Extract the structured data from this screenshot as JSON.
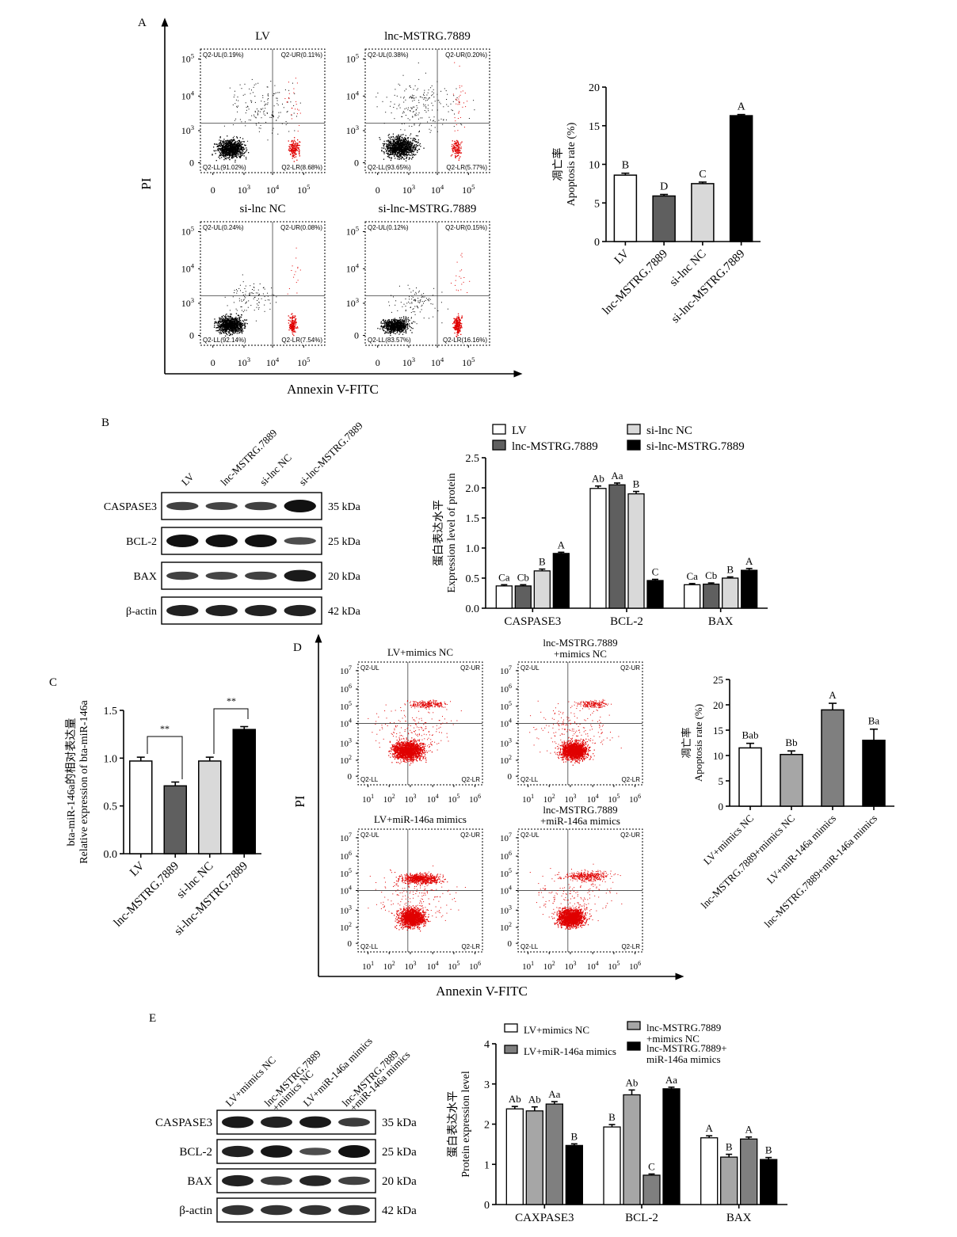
{
  "panel_a": {
    "label": "A",
    "flow": {
      "y_title": "PI",
      "x_title": "Annexin V-FITC",
      "y_ticks": [
        "10^5",
        "10^4",
        "10^3",
        "0"
      ],
      "x_ticks": [
        "0",
        "10^3",
        "10^4",
        "10^5"
      ],
      "plots": [
        {
          "title": "LV",
          "ul": "Q2-UL(0.19%)",
          "ur": "Q2-UR(0.11%)",
          "ll": "Q2-LL(91.02%)",
          "lr": "Q2-LR(8.68%)"
        },
        {
          "title": "lnc-MSTRG.7889",
          "ul": "Q2-UL(0.38%)",
          "ur": "Q2-UR(0.20%)",
          "ll": "Q2-LL(93.65%)",
          "lr": "Q2-LR(5.77%)"
        },
        {
          "title": "si-lnc NC",
          "ul": "Q2-UL(0.24%)",
          "ur": "Q2-UR(0.08%)",
          "ll": "Q2-LL(92.14%)",
          "lr": "Q2-LR(7.54%)"
        },
        {
          "title": "si-lnc-MSTRG.7889",
          "ul": "Q2-UL(0.12%)",
          "ur": "Q2-UR(0.15%)",
          "ll": "Q2-LL(83.57%)",
          "lr": "Q2-LR(16.16%)"
        }
      ]
    }
  },
  "panel_b": {
    "label": "B",
    "blot": {
      "lanes": [
        "LV",
        "lnc-MSTRG.7889",
        "si-lnc NC",
        "si-lnc-MSTRG.7889"
      ],
      "rows": [
        {
          "name": "CASPASE3",
          "kda": "35 kDa",
          "intensity": [
            0.55,
            0.5,
            0.55,
            1.0
          ]
        },
        {
          "name": "BCL-2",
          "kda": "25 kDa",
          "intensity": [
            1.0,
            1.0,
            1.0,
            0.45
          ]
        },
        {
          "name": "BAX",
          "kda": "20 kDa",
          "intensity": [
            0.55,
            0.5,
            0.55,
            0.9
          ]
        },
        {
          "name": "β-actin",
          "kda": "42 kDa",
          "intensity": [
            0.85,
            0.85,
            0.85,
            0.85
          ]
        }
      ]
    }
  },
  "panel_c": {
    "label": "C",
    "sig_1": "**",
    "sig_2": "**"
  },
  "panel_d": {
    "label": "D",
    "flow": {
      "y_title": "PI",
      "x_title": "Annexin V-FITC",
      "y_ticks": [
        "10^7",
        "10^6",
        "10^5",
        "10^4",
        "10^3",
        "10^2",
        "0"
      ],
      "x_ticks": [
        "10^1",
        "10^2",
        "10^3",
        "10^4",
        "10^5",
        "10^6"
      ],
      "plots": [
        {
          "title": "LV+mimics NC",
          "title2": "",
          "ul": "Q2-UL",
          "ur": "Q2-UR",
          "ll": "Q2-LL",
          "lr": "Q2-LR"
        },
        {
          "title": "lnc-MSTRG.7889",
          "title2": "+mimics NC",
          "ul": "Q2-UL",
          "ur": "Q2-UR",
          "ll": "Q2-LL",
          "lr": "Q2-LR"
        },
        {
          "title": "LV+miR-146a mimics",
          "title2": "",
          "ul": "Q2-UL",
          "ur": "Q2-UR",
          "ll": "Q2-LL",
          "lr": "Q2-LR"
        },
        {
          "title": "lnc-MSTRG.7889",
          "title2": "+miR-146a mimics",
          "ul": "Q2-UL",
          "ur": "Q2-UR",
          "ll": "Q2-LL",
          "lr": "Q2-LR"
        }
      ]
    }
  },
  "panel_e": {
    "label": "E",
    "blot": {
      "lanes": [
        {
          "l1": "LV+mimics NC",
          "l2": ""
        },
        {
          "l1": "lnc-MSTRG.7889",
          "l2": "+mimics NC"
        },
        {
          "l1": "LV+miR-146a mimics",
          "l2": ""
        },
        {
          "l1": "lnc-MSTRG.7889",
          "l2": "+miR-146a mimics"
        }
      ],
      "rows": [
        {
          "name": "CASPASE3",
          "kda": "35 kDa",
          "intensity": [
            0.9,
            0.85,
            0.9,
            0.6
          ]
        },
        {
          "name": "BCL-2",
          "kda": "25 kDa",
          "intensity": [
            0.85,
            0.95,
            0.45,
            1.0
          ]
        },
        {
          "name": "BAX",
          "kda": "20 kDa",
          "intensity": [
            0.85,
            0.6,
            0.8,
            0.55
          ]
        },
        {
          "name": "β-actin",
          "kda": "42 kDa",
          "intensity": [
            0.7,
            0.7,
            0.7,
            0.7
          ]
        }
      ]
    }
  },
  "colors": {
    "white": "#ffffff",
    "dark_gray": "#5f5f5f",
    "light_gray": "#d9d9d9",
    "black": "#000000",
    "mid_gray": "#a6a6a6",
    "gray_d": "#7f7f7f",
    "dot_black": "#000000",
    "dot_red": "#e00000"
  },
  "chart_data": [
    {
      "id": "A-bar",
      "type": "bar",
      "title": "",
      "ylabel_cn": "凋亡率",
      "ylabel": "Apoptosis rate (%)",
      "categories": [
        "LV",
        "lnc-MSTRG.7889",
        "si-lnc NC",
        "si-lnc-MSTRG.7889"
      ],
      "values": [
        8.6,
        5.9,
        7.5,
        16.3
      ],
      "errors": [
        0.25,
        0.2,
        0.2,
        0.15
      ],
      "letters": [
        "B",
        "D",
        "C",
        "A"
      ],
      "colors": [
        "#ffffff",
        "#5f5f5f",
        "#d9d9d9",
        "#000000"
      ],
      "ylim": [
        0,
        20
      ],
      "yticks": [
        "0",
        "5",
        "10",
        "15",
        "20"
      ]
    },
    {
      "id": "B-bar",
      "type": "bar",
      "title": "",
      "ylabel_cn": "蛋白表达水平",
      "ylabel": "Expression level of protein",
      "categories": [
        "CASPASE3",
        "BCL-2",
        "BAX"
      ],
      "series": [
        {
          "name": "LV",
          "values": [
            0.37,
            1.99,
            0.39
          ],
          "errors": [
            0.02,
            0.04,
            0.02
          ],
          "letters": [
            "Ca",
            "Ab",
            "Ca"
          ],
          "color": "#ffffff"
        },
        {
          "name": "lnc-MSTRG.7889",
          "values": [
            0.37,
            2.05,
            0.4
          ],
          "errors": [
            0.02,
            0.03,
            0.02
          ],
          "letters": [
            "Cb",
            "Aa",
            "Cb"
          ],
          "color": "#5f5f5f"
        },
        {
          "name": "si-lnc NC",
          "values": [
            0.62,
            1.9,
            0.5
          ],
          "errors": [
            0.03,
            0.04,
            0.02
          ],
          "letters": [
            "B",
            "B",
            "B"
          ],
          "color": "#d9d9d9"
        },
        {
          "name": "si-lnc-MSTRG.7889",
          "values": [
            0.91,
            0.46,
            0.63
          ],
          "errors": [
            0.02,
            0.02,
            0.03
          ],
          "letters": [
            "A",
            "C",
            "A"
          ],
          "color": "#000000"
        }
      ],
      "ylim": [
        0,
        2.5
      ],
      "yticks": [
        "0.0",
        "0.5",
        "1.0",
        "1.5",
        "2.0",
        "2.5"
      ],
      "legend": "top"
    },
    {
      "id": "C-bar",
      "type": "bar",
      "title": "",
      "ylabel_cn": "bta-miR-146a的相对表达量",
      "ylabel": "Relative expression of bta-miR-146a",
      "categories": [
        "LV",
        "lnc-MSTRG.7889",
        "si-lnc NC",
        "si-lnc-MSTRG.7889"
      ],
      "values": [
        0.97,
        0.71,
        0.97,
        1.3
      ],
      "errors": [
        0.04,
        0.04,
        0.04,
        0.03
      ],
      "colors": [
        "#ffffff",
        "#5f5f5f",
        "#d9d9d9",
        "#000000"
      ],
      "ylim": [
        0,
        1.5
      ],
      "yticks": [
        "0.0",
        "0.5",
        "1.0",
        "1.5"
      ]
    },
    {
      "id": "D-bar",
      "type": "bar",
      "title": "",
      "ylabel_cn": "凋亡率",
      "ylabel": "Apoptosis rate (%)",
      "categories": [
        "LV+mimics NC",
        "lnc-MSTRG.7889+mimics NC",
        "LV+miR-146a mimics",
        "lnc-MSTRG.7889+miR-146a mimics"
      ],
      "values": [
        11.5,
        10.2,
        19.0,
        13.0
      ],
      "errors": [
        0.9,
        0.7,
        1.3,
        2.2
      ],
      "letters": [
        "Bab",
        "Bb",
        "A",
        "Ba"
      ],
      "colors": [
        "#ffffff",
        "#a6a6a6",
        "#7f7f7f",
        "#000000"
      ],
      "ylim": [
        0,
        25
      ],
      "yticks": [
        "0",
        "5",
        "10",
        "15",
        "20",
        "25"
      ]
    },
    {
      "id": "E-bar",
      "type": "bar",
      "title": "",
      "ylabel_cn": "蛋白表达水平",
      "ylabel": "Protein expression level",
      "categories": [
        "CAXPASE3",
        "BCL-2",
        "BAX"
      ],
      "series": [
        {
          "name": "LV+mimics NC",
          "values": [
            2.38,
            1.93,
            1.66
          ],
          "errors": [
            0.06,
            0.06,
            0.05
          ],
          "letters": [
            "Ab",
            "B",
            "A"
          ],
          "color": "#ffffff"
        },
        {
          "name": "lnc-MSTRG.7889 +mimics NC",
          "values": [
            2.33,
            2.73,
            1.18
          ],
          "errors": [
            0.1,
            0.12,
            0.07
          ],
          "letters": [
            "Ab",
            "Ab",
            "B"
          ],
          "color": "#a6a6a6"
        },
        {
          "name": "LV+miR-146a mimics",
          "values": [
            2.5,
            0.73,
            1.63
          ],
          "errors": [
            0.06,
            0.03,
            0.05
          ],
          "letters": [
            "Aa",
            "C",
            "A"
          ],
          "color": "#7f7f7f"
        },
        {
          "name": "lnc-MSTRG.7889+ miR-146a mimics",
          "values": [
            1.47,
            2.88,
            1.12
          ],
          "errors": [
            0.04,
            0.04,
            0.05
          ],
          "letters": [
            "B",
            "Aa",
            "B"
          ],
          "color": "#000000"
        }
      ],
      "ylim": [
        0,
        4
      ],
      "yticks": [
        "0",
        "1",
        "2",
        "3",
        "4"
      ],
      "legend": "top"
    }
  ]
}
